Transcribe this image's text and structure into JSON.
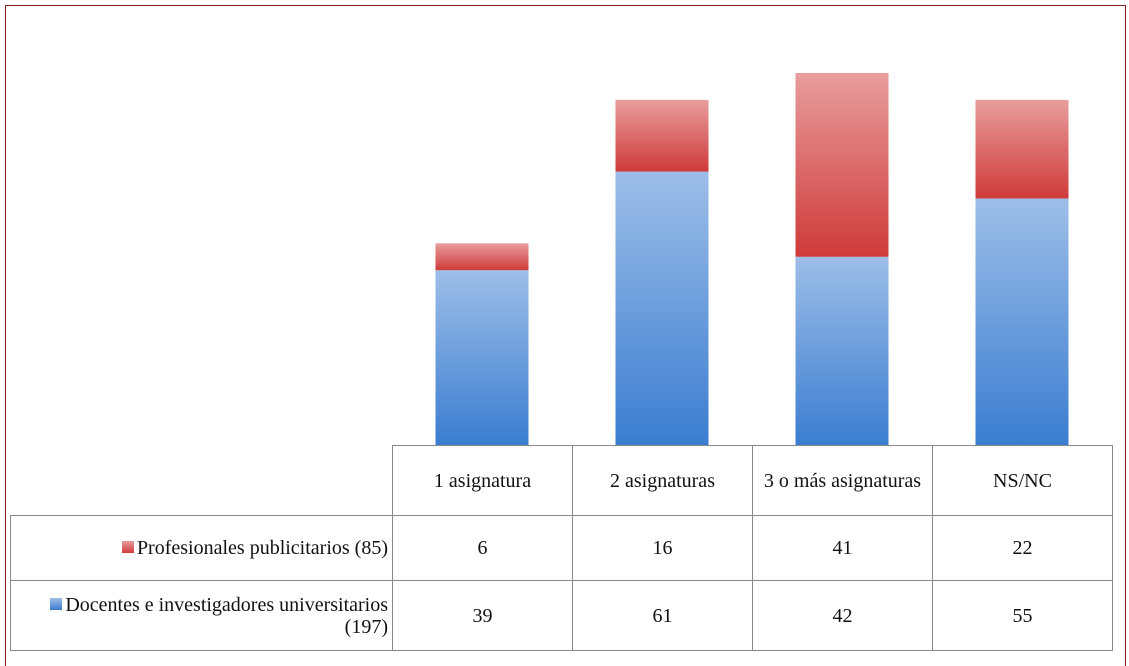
{
  "chart_data": {
    "type": "stacked_bar",
    "categories": [
      "1 asignatura",
      "2 asignaturas",
      "3 o más asignaturas",
      "NS/NC"
    ],
    "series": [
      {
        "name": "Profesionales publicitarios (85)",
        "color": "#d03a3a",
        "values": [
          6,
          16,
          41,
          22
        ]
      },
      {
        "name": "Docentes e investigadores universitarios (197)",
        "color": "#3b7dd0",
        "values": [
          39,
          61,
          42,
          55
        ]
      }
    ]
  }
}
